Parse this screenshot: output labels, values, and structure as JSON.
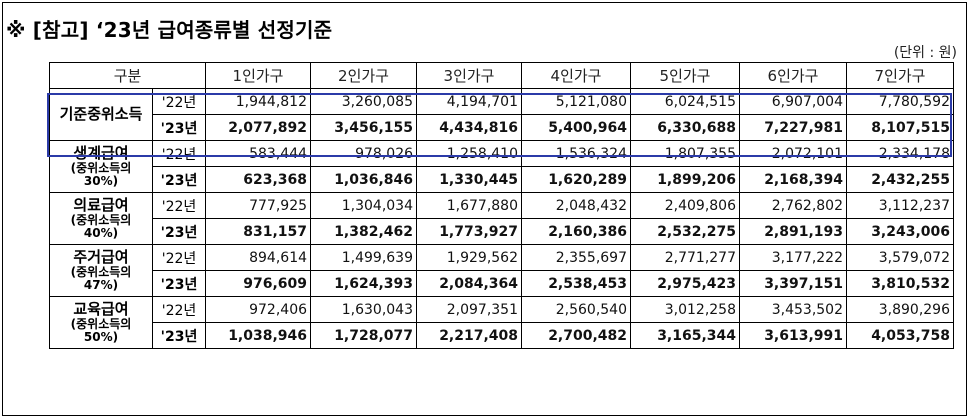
{
  "title": "※ [참고] ‘23년 급여종류별 선정기준",
  "unit": "(단위 : 원)",
  "table": {
    "corner_label": "구분",
    "headers": [
      "1인가구",
      "2인가구",
      "3인가구",
      "4인가구",
      "5인가구",
      "6인가구",
      "7인가구"
    ],
    "groups": [
      {
        "name": "기준중위소득",
        "note": "",
        "rows": [
          {
            "year": "'22년",
            "values": [
              "1,944,812",
              "3,260,085",
              "4,194,701",
              "5,121,080",
              "6,024,515",
              "6,907,004",
              "7,780,592"
            ]
          },
          {
            "year": "'23년",
            "values": [
              "2,077,892",
              "3,456,155",
              "4,434,816",
              "5,400,964",
              "6,330,688",
              "7,227,981",
              "8,107,515"
            ]
          }
        ]
      },
      {
        "name": "생계급여",
        "note": "(중위소득의 30%)",
        "rows": [
          {
            "year": "'22년",
            "values": [
              "583,444",
              "978,026",
              "1,258,410",
              "1,536,324",
              "1,807,355",
              "2,072,101",
              "2,334,178"
            ]
          },
          {
            "year": "'23년",
            "values": [
              "623,368",
              "1,036,846",
              "1,330,445",
              "1,620,289",
              "1,899,206",
              "2,168,394",
              "2,432,255"
            ]
          }
        ]
      },
      {
        "name": "의료급여",
        "note": "(중위소득의 40%)",
        "rows": [
          {
            "year": "'22년",
            "values": [
              "777,925",
              "1,304,034",
              "1,677,880",
              "2,048,432",
              "2,409,806",
              "2,762,802",
              "3,112,237"
            ]
          },
          {
            "year": "'23년",
            "values": [
              "831,157",
              "1,382,462",
              "1,773,927",
              "2,160,386",
              "2,532,275",
              "2,891,193",
              "3,243,006"
            ]
          }
        ]
      },
      {
        "name": "주거급여",
        "note": "(중위소득의 47%)",
        "rows": [
          {
            "year": "'22년",
            "values": [
              "894,614",
              "1,499,639",
              "1,929,562",
              "2,355,697",
              "2,771,277",
              "3,177,222",
              "3,579,072"
            ]
          },
          {
            "year": "'23년",
            "values": [
              "976,609",
              "1,624,393",
              "2,084,364",
              "2,538,453",
              "2,975,423",
              "3,397,151",
              "3,810,532"
            ]
          }
        ]
      },
      {
        "name": "교육급여",
        "note": "(중위소득의 50%)",
        "rows": [
          {
            "year": "'22년",
            "values": [
              "972,406",
              "1,630,043",
              "2,097,351",
              "2,560,540",
              "3,012,258",
              "3,453,502",
              "3,890,296"
            ]
          },
          {
            "year": "'23년",
            "values": [
              "1,038,946",
              "1,728,077",
              "2,217,408",
              "2,700,482",
              "3,165,344",
              "3,613,991",
              "4,053,758"
            ]
          }
        ]
      }
    ]
  },
  "colors": {
    "highlight_border": "#2b3aa8"
  }
}
